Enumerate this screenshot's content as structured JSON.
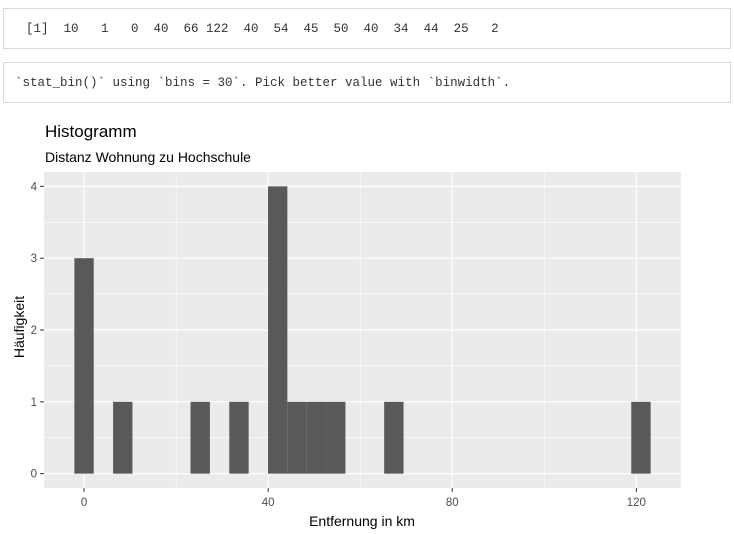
{
  "console": {
    "values_line": "[1]  10   1   0  40  66 122  40  54  45  50  40  34  44  25   2",
    "warning_line": "`stat_bin()` using `bins = 30`. Pick better value with `binwidth`."
  },
  "chart_data": {
    "type": "bar",
    "title": "Histogramm",
    "subtitle": "Distanz Wohnung zu Hochschule",
    "xlabel": "Entfernung in km",
    "ylabel": "Häufigkeit",
    "xlim": [
      -8.7,
      129.7
    ],
    "ylim": [
      -0.2,
      4.2
    ],
    "xticks": [
      0,
      40,
      80,
      120
    ],
    "yticks": [
      0,
      1,
      2,
      3,
      4
    ],
    "binwidth": 4.2069,
    "bins": [
      {
        "x": 0.0,
        "count": 3
      },
      {
        "x": 8.41,
        "count": 1
      },
      {
        "x": 25.24,
        "count": 1
      },
      {
        "x": 33.66,
        "count": 1
      },
      {
        "x": 42.07,
        "count": 4
      },
      {
        "x": 46.28,
        "count": 1
      },
      {
        "x": 50.48,
        "count": 1
      },
      {
        "x": 54.69,
        "count": 1
      },
      {
        "x": 67.31,
        "count": 1
      },
      {
        "x": 121.0,
        "count": 1
      }
    ],
    "colors": {
      "panel": "#ebebeb",
      "grid": "#ffffff",
      "bar": "#595959"
    }
  }
}
